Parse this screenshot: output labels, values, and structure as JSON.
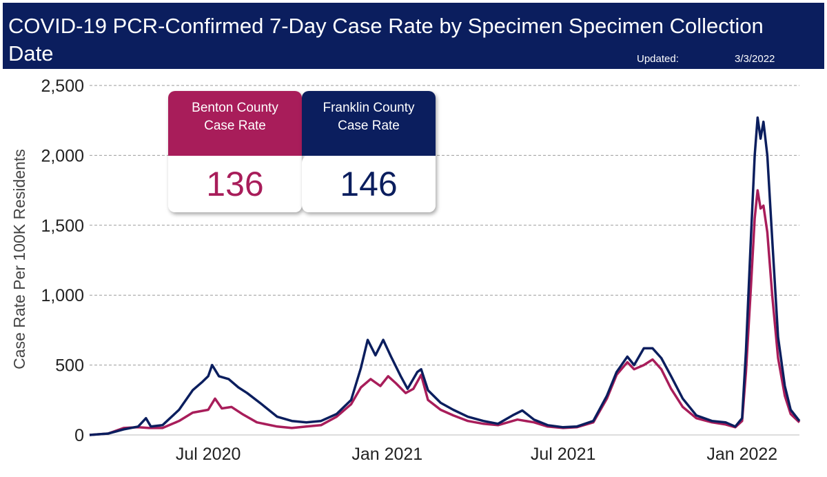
{
  "header": {
    "title": "COVID-19 PCR-Confirmed 7-Day Case Rate by Specimen Specimen Collection Date",
    "updated_label": "Updated:",
    "updated_date": "3/3/2022"
  },
  "cards": {
    "benton": {
      "label_line1": "Benton County",
      "label_line2": "Case Rate",
      "value": "136"
    },
    "franklin": {
      "label_line1": "Franklin County",
      "label_line2": "Case Rate",
      "value": "146"
    }
  },
  "colors": {
    "header_bg": "#0b1e5e",
    "benton": "#a81d5a",
    "franklin": "#0b1e5e"
  },
  "chart_data": {
    "type": "line",
    "title": "COVID-19 PCR-Confirmed 7-Day Case Rate by Specimen Specimen Collection Date",
    "xlabel": "",
    "ylabel": "Case Rate Per 100K Residents",
    "ylim": [
      0,
      2500
    ],
    "xlim": [
      "2020-03-01",
      "2022-03-01"
    ],
    "yticks": [
      0,
      500,
      1000,
      1500,
      2000,
      2500
    ],
    "ytick_labels": [
      "0",
      "500",
      "1,000",
      "1,500",
      "2,000",
      "2,500"
    ],
    "xticks": [
      "2020-07-01",
      "2021-01-01",
      "2021-07-01",
      "2022-01-01"
    ],
    "xtick_labels": [
      "Jul 2020",
      "Jan 2021",
      "Jul 2021",
      "Jan 2022"
    ],
    "grid": "horizontal-dashed",
    "series": [
      {
        "name": "Franklin County Case Rate",
        "color": "#0b1e5e",
        "points": [
          [
            "2020-03-01",
            0
          ],
          [
            "2020-03-20",
            10
          ],
          [
            "2020-04-05",
            40
          ],
          [
            "2020-04-20",
            60
          ],
          [
            "2020-04-28",
            120
          ],
          [
            "2020-05-03",
            60
          ],
          [
            "2020-05-15",
            70
          ],
          [
            "2020-06-01",
            180
          ],
          [
            "2020-06-15",
            320
          ],
          [
            "2020-06-25",
            380
          ],
          [
            "2020-07-01",
            420
          ],
          [
            "2020-07-05",
            500
          ],
          [
            "2020-07-12",
            420
          ],
          [
            "2020-07-22",
            400
          ],
          [
            "2020-08-01",
            340
          ],
          [
            "2020-08-10",
            300
          ],
          [
            "2020-08-25",
            220
          ],
          [
            "2020-09-10",
            130
          ],
          [
            "2020-09-25",
            100
          ],
          [
            "2020-10-10",
            90
          ],
          [
            "2020-10-25",
            100
          ],
          [
            "2020-11-10",
            150
          ],
          [
            "2020-11-25",
            250
          ],
          [
            "2020-12-05",
            480
          ],
          [
            "2020-12-12",
            680
          ],
          [
            "2020-12-20",
            570
          ],
          [
            "2020-12-28",
            680
          ],
          [
            "2021-01-05",
            560
          ],
          [
            "2021-01-15",
            420
          ],
          [
            "2021-01-22",
            330
          ],
          [
            "2021-02-01",
            450
          ],
          [
            "2021-02-05",
            470
          ],
          [
            "2021-02-12",
            320
          ],
          [
            "2021-02-25",
            230
          ],
          [
            "2021-03-10",
            180
          ],
          [
            "2021-03-25",
            130
          ],
          [
            "2021-04-10",
            100
          ],
          [
            "2021-04-25",
            80
          ],
          [
            "2021-05-10",
            140
          ],
          [
            "2021-05-20",
            175
          ],
          [
            "2021-06-01",
            110
          ],
          [
            "2021-06-15",
            70
          ],
          [
            "2021-07-01",
            55
          ],
          [
            "2021-07-15",
            60
          ],
          [
            "2021-08-01",
            100
          ],
          [
            "2021-08-15",
            280
          ],
          [
            "2021-08-25",
            450
          ],
          [
            "2021-09-05",
            560
          ],
          [
            "2021-09-12",
            500
          ],
          [
            "2021-09-22",
            620
          ],
          [
            "2021-10-01",
            620
          ],
          [
            "2021-10-10",
            550
          ],
          [
            "2021-10-20",
            420
          ],
          [
            "2021-11-01",
            260
          ],
          [
            "2021-11-15",
            140
          ],
          [
            "2021-12-01",
            100
          ],
          [
            "2021-12-15",
            90
          ],
          [
            "2021-12-25",
            60
          ],
          [
            "2022-01-01",
            120
          ],
          [
            "2022-01-05",
            600
          ],
          [
            "2022-01-10",
            1400
          ],
          [
            "2022-01-14",
            2000
          ],
          [
            "2022-01-17",
            2270
          ],
          [
            "2022-01-20",
            2120
          ],
          [
            "2022-01-23",
            2240
          ],
          [
            "2022-01-27",
            2000
          ],
          [
            "2022-02-01",
            1400
          ],
          [
            "2022-02-07",
            700
          ],
          [
            "2022-02-14",
            350
          ],
          [
            "2022-02-20",
            180
          ],
          [
            "2022-03-01",
            100
          ]
        ]
      },
      {
        "name": "Benton County Case Rate",
        "color": "#a81d5a",
        "points": [
          [
            "2020-03-01",
            0
          ],
          [
            "2020-03-20",
            10
          ],
          [
            "2020-04-05",
            50
          ],
          [
            "2020-04-20",
            55
          ],
          [
            "2020-05-01",
            50
          ],
          [
            "2020-05-15",
            50
          ],
          [
            "2020-06-01",
            100
          ],
          [
            "2020-06-15",
            160
          ],
          [
            "2020-07-01",
            180
          ],
          [
            "2020-07-08",
            260
          ],
          [
            "2020-07-15",
            190
          ],
          [
            "2020-07-25",
            200
          ],
          [
            "2020-08-05",
            150
          ],
          [
            "2020-08-20",
            90
          ],
          [
            "2020-09-10",
            60
          ],
          [
            "2020-09-25",
            50
          ],
          [
            "2020-10-10",
            60
          ],
          [
            "2020-10-25",
            70
          ],
          [
            "2020-11-10",
            130
          ],
          [
            "2020-11-25",
            220
          ],
          [
            "2020-12-05",
            340
          ],
          [
            "2020-12-15",
            400
          ],
          [
            "2020-12-25",
            350
          ],
          [
            "2021-01-02",
            420
          ],
          [
            "2021-01-10",
            370
          ],
          [
            "2021-01-20",
            300
          ],
          [
            "2021-01-28",
            330
          ],
          [
            "2021-02-05",
            430
          ],
          [
            "2021-02-12",
            250
          ],
          [
            "2021-02-25",
            180
          ],
          [
            "2021-03-10",
            140
          ],
          [
            "2021-03-25",
            100
          ],
          [
            "2021-04-10",
            80
          ],
          [
            "2021-04-25",
            70
          ],
          [
            "2021-05-15",
            110
          ],
          [
            "2021-06-01",
            90
          ],
          [
            "2021-06-15",
            60
          ],
          [
            "2021-07-01",
            50
          ],
          [
            "2021-07-15",
            55
          ],
          [
            "2021-08-01",
            90
          ],
          [
            "2021-08-15",
            260
          ],
          [
            "2021-08-25",
            430
          ],
          [
            "2021-09-05",
            520
          ],
          [
            "2021-09-12",
            470
          ],
          [
            "2021-09-22",
            500
          ],
          [
            "2021-10-01",
            540
          ],
          [
            "2021-10-10",
            470
          ],
          [
            "2021-10-20",
            330
          ],
          [
            "2021-11-01",
            200
          ],
          [
            "2021-11-15",
            120
          ],
          [
            "2021-12-01",
            90
          ],
          [
            "2021-12-15",
            75
          ],
          [
            "2021-12-25",
            55
          ],
          [
            "2022-01-01",
            100
          ],
          [
            "2022-01-05",
            450
          ],
          [
            "2022-01-10",
            1050
          ],
          [
            "2022-01-14",
            1550
          ],
          [
            "2022-01-17",
            1750
          ],
          [
            "2022-01-20",
            1620
          ],
          [
            "2022-01-23",
            1640
          ],
          [
            "2022-01-27",
            1450
          ],
          [
            "2022-02-01",
            1000
          ],
          [
            "2022-02-07",
            550
          ],
          [
            "2022-02-14",
            280
          ],
          [
            "2022-02-20",
            150
          ],
          [
            "2022-03-01",
            90
          ]
        ]
      }
    ]
  }
}
